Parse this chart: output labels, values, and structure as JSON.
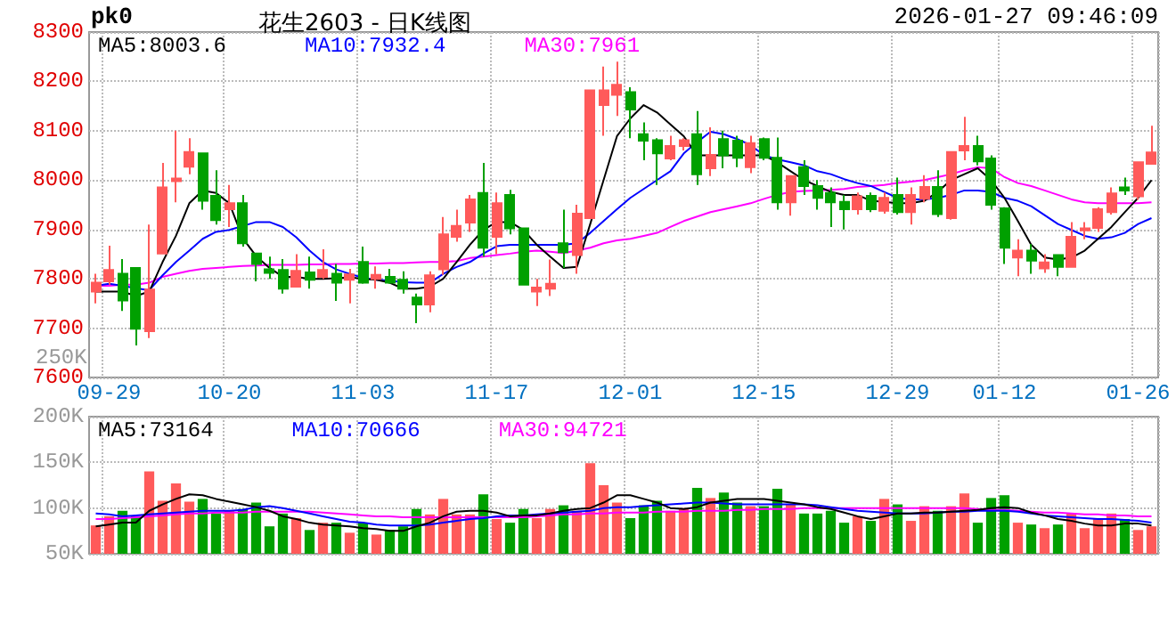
{
  "chart_data": [
    {
      "type": "candlestick",
      "title": "花生2603 - 日K线图",
      "annotations": [
        "pk0",
        "2026-01-27 09:46:09"
      ],
      "categories": [
        null,
        "09-29",
        null,
        null,
        null,
        null,
        null,
        null,
        null,
        null,
        "10-20",
        null,
        null,
        null,
        null,
        null,
        null,
        null,
        null,
        null,
        "11-03",
        null,
        null,
        null,
        null,
        null,
        null,
        null,
        null,
        null,
        "11-17",
        null,
        null,
        null,
        null,
        null,
        null,
        null,
        null,
        null,
        "12-01",
        null,
        null,
        null,
        null,
        null,
        null,
        null,
        null,
        null,
        "12-15",
        null,
        null,
        null,
        null,
        null,
        null,
        null,
        null,
        null,
        "12-29",
        null,
        null,
        null,
        null,
        null,
        null,
        null,
        "01-12",
        null,
        null,
        null,
        null,
        null,
        null,
        null,
        null,
        null,
        "01-26",
        null
      ],
      "ohlc": [
        [
          7774,
          7810,
          7750,
          7792
        ],
        [
          7795,
          7867,
          7788,
          7818
        ],
        [
          7810,
          7840,
          7735,
          7756
        ],
        [
          7822,
          7822,
          7665,
          7699
        ],
        [
          7694,
          7910,
          7680,
          7778
        ],
        [
          7851,
          8035,
          7851,
          7985
        ],
        [
          7998,
          8100,
          7955,
          8003
        ],
        [
          8027,
          8085,
          8012,
          8057
        ],
        [
          8054,
          8054,
          7940,
          7958
        ],
        [
          7968,
          8020,
          7910,
          7919
        ],
        [
          7941,
          7990,
          7905,
          7953
        ],
        [
          7953,
          7970,
          7865,
          7872
        ],
        [
          7851,
          7851,
          7795,
          7830
        ],
        [
          7819,
          7845,
          7800,
          7812
        ],
        [
          7818,
          7840,
          7770,
          7780
        ],
        [
          7784,
          7850,
          7784,
          7816
        ],
        [
          7813,
          7845,
          7780,
          7798
        ],
        [
          7804,
          7860,
          7800,
          7818
        ],
        [
          7810,
          7830,
          7755,
          7792
        ],
        [
          7798,
          7820,
          7750,
          7809
        ],
        [
          7834,
          7865,
          7790,
          7792
        ],
        [
          7800,
          7825,
          7780,
          7808
        ],
        [
          7804,
          7820,
          7790,
          7792
        ],
        [
          7798,
          7815,
          7770,
          7780
        ],
        [
          7762,
          7770,
          7710,
          7748
        ],
        [
          7748,
          7815,
          7732,
          7807
        ],
        [
          7819,
          7925,
          7808,
          7890
        ],
        [
          7885,
          7940,
          7875,
          7907
        ],
        [
          7914,
          7970,
          7895,
          7961
        ],
        [
          7974,
          8035,
          7845,
          7863
        ],
        [
          7885,
          7975,
          7850,
          7953
        ],
        [
          7970,
          7980,
          7890,
          7902
        ],
        [
          7902,
          7902,
          7788,
          7788
        ],
        [
          7774,
          7800,
          7745,
          7782
        ],
        [
          7780,
          7839,
          7765,
          7790
        ],
        [
          7872,
          7940,
          7822,
          7854
        ],
        [
          7848,
          7950,
          7810,
          7932
        ],
        [
          7923,
          8182,
          7923,
          8182
        ],
        [
          8152,
          8230,
          8090,
          8182
        ],
        [
          8173,
          8240,
          8130,
          8193
        ],
        [
          8178,
          8188,
          8085,
          8143
        ],
        [
          8093,
          8117,
          8040,
          8080
        ],
        [
          8081,
          8085,
          7990,
          8054
        ],
        [
          8044,
          8090,
          8040,
          8069
        ],
        [
          8069,
          8085,
          8060,
          8081
        ],
        [
          8093,
          8140,
          7990,
          8012
        ],
        [
          8024,
          8107,
          8008,
          8051
        ],
        [
          8083,
          8100,
          8024,
          8050
        ],
        [
          8080,
          8090,
          8026,
          8045
        ],
        [
          8026,
          8090,
          8014,
          8075
        ],
        [
          8083,
          8086,
          8040,
          8045
        ],
        [
          8045,
          8086,
          7940,
          7955
        ],
        [
          7955,
          8010,
          7928,
          8008
        ],
        [
          8026,
          8040,
          7970,
          7988
        ],
        [
          7988,
          8000,
          7940,
          7964
        ],
        [
          7974,
          7985,
          7905,
          7955
        ],
        [
          7956,
          7970,
          7900,
          7941
        ],
        [
          7941,
          7975,
          7930,
          7967
        ],
        [
          7968,
          7975,
          7935,
          7941
        ],
        [
          7938,
          7975,
          7932,
          7964
        ],
        [
          7970,
          8005,
          7930,
          7935
        ],
        [
          7935,
          7985,
          7910,
          7970
        ],
        [
          7962,
          8010,
          7955,
          7986
        ],
        [
          7986,
          8020,
          7925,
          7931
        ],
        [
          7923,
          8057,
          7920,
          8057
        ],
        [
          8060,
          8128,
          8040,
          8069
        ],
        [
          8069,
          8090,
          8030,
          8038
        ],
        [
          8044,
          8050,
          7940,
          7950
        ],
        [
          7943,
          7945,
          7830,
          7863
        ],
        [
          7843,
          7880,
          7805,
          7857
        ],
        [
          7857,
          7870,
          7810,
          7837
        ],
        [
          7821,
          7850,
          7812,
          7833
        ],
        [
          7848,
          7850,
          7805,
          7824
        ],
        [
          7824,
          7915,
          7824,
          7885
        ],
        [
          7898,
          7915,
          7880,
          7902
        ],
        [
          7903,
          7945,
          7895,
          7941
        ],
        [
          7935,
          7985,
          7930,
          7973
        ],
        [
          7985,
          8005,
          7970,
          7979
        ],
        [
          7967,
          8036,
          7960,
          8036
        ],
        [
          8033,
          8110,
          8033,
          8056
        ]
      ],
      "colors": [
        "#ff5a5a",
        "#ff5a5a",
        "#00a000",
        "#00a000",
        "#ff5a5a",
        "#ff5a5a",
        "#ff5a5a",
        "#ff5a5a",
        "#00a000",
        "#00a000",
        "#ff5a5a",
        "#00a000",
        "#00a000",
        "#00a000",
        "#00a000",
        "#ff5a5a",
        "#00a000",
        "#ff5a5a",
        "#00a000",
        "#ff5a5a",
        "#00a000",
        "#ff5a5a",
        "#00a000",
        "#00a000",
        "#00a000",
        "#ff5a5a",
        "#ff5a5a",
        "#ff5a5a",
        "#ff5a5a",
        "#00a000",
        "#ff5a5a",
        "#00a000",
        "#00a000",
        "#ff5a5a",
        "#ff5a5a",
        "#00a000",
        "#ff5a5a",
        "#ff5a5a",
        "#ff5a5a",
        "#ff5a5a",
        "#00a000",
        "#00a000",
        "#00a000",
        "#ff5a5a",
        "#ff5a5a",
        "#00a000",
        "#ff5a5a",
        "#00a000",
        "#00a000",
        "#ff5a5a",
        "#00a000",
        "#00a000",
        "#ff5a5a",
        "#00a000",
        "#00a000",
        "#00a000",
        "#00a000",
        "#ff5a5a",
        "#00a000",
        "#ff5a5a",
        "#00a000",
        "#ff5a5a",
        "#ff5a5a",
        "#00a000",
        "#ff5a5a",
        "#ff5a5a",
        "#00a000",
        "#00a000",
        "#00a000",
        "#ff5a5a",
        "#00a000",
        "#ff5a5a",
        "#00a000",
        "#ff5a5a",
        "#ff5a5a",
        "#ff5a5a",
        "#ff5a5a",
        "#00a000",
        "#ff5a5a",
        "#ff5a5a"
      ],
      "series": [
        {
          "name": "MA5:8003.6",
          "type": "line",
          "color": "#000000",
          "values": [
            7774,
            7774,
            7774,
            7765,
            7774,
            7834,
            7887,
            7953,
            7979,
            7974,
            7953,
            7882,
            7846,
            7822,
            7804,
            7804,
            7800,
            7800,
            7801,
            7803,
            7800,
            7798,
            7792,
            7780,
            7780,
            7784,
            7800,
            7834,
            7869,
            7899,
            7915,
            7915,
            7899,
            7869,
            7845,
            7822,
            7824,
            7911,
            8000,
            8089,
            8125,
            8152,
            8137,
            8113,
            8089,
            8050,
            8050,
            8050,
            8050,
            8050,
            8050,
            8036,
            8018,
            8000,
            7988,
            7976,
            7970,
            7970,
            7958,
            7956,
            7953,
            7953,
            7958,
            7976,
            8000,
            8012,
            8024,
            8000,
            7964,
            7917,
            7869,
            7843,
            7839,
            7843,
            7857,
            7881,
            7905,
            7935,
            7964,
            8000
          ]
        },
        {
          "name": "MA10:7932.4",
          "type": "line",
          "color": "#0000ff",
          "values": [
            7786,
            7790,
            7786,
            7781,
            7777,
            7807,
            7834,
            7857,
            7881,
            7895,
            7899,
            7907,
            7915,
            7915,
            7905,
            7884,
            7857,
            7834,
            7819,
            7810,
            7802,
            7798,
            7796,
            7793,
            7792,
            7792,
            7810,
            7824,
            7834,
            7851,
            7866,
            7869,
            7869,
            7869,
            7869,
            7869,
            7872,
            7893,
            7917,
            7941,
            7964,
            7982,
            8000,
            8018,
            8054,
            8077,
            8098,
            8093,
            8083,
            8071,
            8050,
            8042,
            8036,
            8030,
            8018,
            8012,
            8002,
            7994,
            7988,
            7976,
            7964,
            7961,
            7961,
            7964,
            7970,
            7979,
            7979,
            7976,
            7964,
            7958,
            7947,
            7929,
            7911,
            7899,
            7887,
            7881,
            7884,
            7893,
            7911,
            7923
          ]
        },
        {
          "name": "MA30:7961",
          "type": "line",
          "color": "#ff00ff",
          "values": [
            7786,
            7786,
            7788,
            7788,
            7792,
            7804,
            7810,
            7816,
            7820,
            7822,
            7824,
            7826,
            7827,
            7828,
            7828,
            7828,
            7829,
            7829,
            7830,
            7830,
            7831,
            7831,
            7832,
            7832,
            7833,
            7834,
            7834,
            7836,
            7842,
            7845,
            7848,
            7851,
            7855,
            7857,
            7855,
            7852,
            7857,
            7863,
            7872,
            7878,
            7881,
            7887,
            7893,
            7905,
            7917,
            7926,
            7935,
            7941,
            7947,
            7953,
            7962,
            7970,
            7976,
            7978,
            7979,
            7980,
            7982,
            7986,
            7988,
            7990,
            7994,
            7997,
            8000,
            8006,
            8012,
            8020,
            8026,
            8024,
            8006,
            7994,
            7988,
            7979,
            7970,
            7961,
            7955,
            7953,
            7953,
            7953,
            7953,
            7955
          ]
        }
      ],
      "ylim": [
        7600,
        8300
      ],
      "yticks": [
        7600,
        7700,
        7800,
        7900,
        8000,
        8100,
        8200,
        8300
      ],
      "grid": true,
      "legend": "top left",
      "marker": "none",
      "line_style": "solid"
    },
    {
      "type": "bar",
      "annotations": [
        "250K"
      ],
      "categories": [
        null,
        null,
        null,
        null,
        null,
        null,
        null,
        null,
        null,
        null,
        null,
        null,
        null,
        null,
        null,
        null,
        null,
        null,
        null,
        null,
        null,
        null,
        null,
        null,
        null,
        null,
        null,
        null,
        null,
        null,
        null,
        null,
        null,
        null,
        null,
        null,
        null,
        null,
        null,
        null,
        null,
        null,
        null,
        null,
        null,
        null,
        null,
        null,
        null,
        null,
        null,
        null,
        null,
        null,
        null,
        null,
        null,
        null,
        null,
        null,
        null,
        null,
        null,
        null,
        null,
        null,
        null,
        null,
        null,
        null,
        null,
        null,
        null,
        null,
        null,
        null,
        null,
        null,
        null,
        null
      ],
      "values": [
        81000,
        91000,
        97000,
        91000,
        140000,
        108000,
        127000,
        107000,
        110000,
        94000,
        97000,
        99000,
        106000,
        80000,
        94000,
        89000,
        76000,
        84000,
        84000,
        73000,
        84000,
        71000,
        76000,
        80000,
        99000,
        93000,
        110000,
        93000,
        93000,
        115000,
        88000,
        84000,
        99000,
        89000,
        99000,
        103000,
        97000,
        149000,
        125000,
        106000,
        89000,
        103000,
        108000,
        97000,
        100000,
        122000,
        111000,
        117000,
        106000,
        102000,
        102000,
        121000,
        104000,
        94000,
        94000,
        97000,
        84000,
        91000,
        86000,
        110000,
        104000,
        86000,
        102000,
        97000,
        102000,
        116000,
        84000,
        111000,
        114000,
        84000,
        82000,
        78000,
        82000,
        94000,
        78000,
        88000,
        94000,
        88000,
        76000,
        80000
      ],
      "colors": [
        "#ff5a5a",
        "#ff5a5a",
        "#00a000",
        "#00a000",
        "#ff5a5a",
        "#ff5a5a",
        "#ff5a5a",
        "#ff5a5a",
        "#00a000",
        "#00a000",
        "#ff5a5a",
        "#00a000",
        "#00a000",
        "#00a000",
        "#00a000",
        "#ff5a5a",
        "#00a000",
        "#ff5a5a",
        "#00a000",
        "#ff5a5a",
        "#00a000",
        "#ff5a5a",
        "#00a000",
        "#00a000",
        "#00a000",
        "#ff5a5a",
        "#ff5a5a",
        "#ff5a5a",
        "#ff5a5a",
        "#00a000",
        "#ff5a5a",
        "#00a000",
        "#00a000",
        "#ff5a5a",
        "#ff5a5a",
        "#00a000",
        "#ff5a5a",
        "#ff5a5a",
        "#ff5a5a",
        "#ff5a5a",
        "#00a000",
        "#00a000",
        "#00a000",
        "#ff5a5a",
        "#ff5a5a",
        "#00a000",
        "#ff5a5a",
        "#00a000",
        "#00a000",
        "#ff5a5a",
        "#00a000",
        "#00a000",
        "#ff5a5a",
        "#00a000",
        "#00a000",
        "#00a000",
        "#00a000",
        "#ff5a5a",
        "#00a000",
        "#ff5a5a",
        "#00a000",
        "#ff5a5a",
        "#ff5a5a",
        "#00a000",
        "#ff5a5a",
        "#ff5a5a",
        "#00a000",
        "#00a000",
        "#00a000",
        "#ff5a5a",
        "#00a000",
        "#ff5a5a",
        "#00a000",
        "#ff5a5a",
        "#ff5a5a",
        "#ff5a5a",
        "#ff5a5a",
        "#00a000",
        "#ff5a5a",
        "#ff5a5a"
      ],
      "series": [
        {
          "name": "MA5:73164",
          "type": "line",
          "color": "#000000",
          "values": [
            80000,
            82000,
            84000,
            84000,
            97000,
            104000,
            110000,
            115000,
            114000,
            110000,
            107000,
            104000,
            101000,
            97000,
            91000,
            88000,
            84000,
            82000,
            81000,
            80000,
            78000,
            77000,
            75000,
            75000,
            80000,
            84000,
            91000,
            96000,
            97000,
            97000,
            95000,
            91000,
            92000,
            92000,
            94000,
            97000,
            99000,
            100000,
            106000,
            114000,
            114000,
            110000,
            106000,
            100000,
            99000,
            101000,
            106000,
            108000,
            110000,
            110000,
            110000,
            108000,
            106000,
            104000,
            101000,
            99000,
            95000,
            91000,
            88000,
            91000,
            94000,
            94000,
            95000,
            95000,
            96000,
            97000,
            98000,
            100000,
            101000,
            100000,
            95000,
            92000,
            88000,
            86000,
            83000,
            81000,
            81000,
            83000,
            83000,
            81000
          ]
        },
        {
          "name": "MA10:70666",
          "type": "line",
          "color": "#0000ff",
          "values": [
            94000,
            93000,
            91000,
            92000,
            93000,
            94000,
            95000,
            96000,
            97000,
            97000,
            97000,
            98000,
            101000,
            102000,
            100000,
            97000,
            94000,
            91000,
            88000,
            85000,
            84000,
            82000,
            81000,
            81000,
            81000,
            82000,
            84000,
            86000,
            88000,
            89000,
            91000,
            92000,
            92000,
            93000,
            94000,
            95000,
            96000,
            97000,
            100000,
            101000,
            101000,
            102000,
            103000,
            104000,
            105000,
            106000,
            106000,
            105000,
            104000,
            104000,
            104000,
            104000,
            104000,
            104000,
            103000,
            101000,
            99000,
            97000,
            96000,
            95000,
            94000,
            94000,
            94000,
            95000,
            96000,
            96000,
            97000,
            97000,
            97000,
            96000,
            94000,
            92000,
            91000,
            90000,
            89000,
            88000,
            88000,
            87000,
            86000,
            84000
          ]
        },
        {
          "name": "MA30:94721",
          "type": "line",
          "color": "#ff00ff",
          "values": [
            88000,
            88000,
            89000,
            90000,
            91000,
            92000,
            93000,
            94000,
            94000,
            95000,
            95000,
            95000,
            96000,
            96000,
            96000,
            96000,
            96000,
            95000,
            94000,
            93000,
            92000,
            91000,
            91000,
            90000,
            90000,
            90000,
            90000,
            90000,
            90000,
            90000,
            90000,
            90000,
            90000,
            91000,
            92000,
            93000,
            93000,
            94000,
            94000,
            95000,
            95000,
            95000,
            96000,
            96000,
            96000,
            97000,
            97000,
            97000,
            98000,
            98000,
            99000,
            99000,
            99000,
            100000,
            100000,
            100000,
            100000,
            100000,
            100000,
            100000,
            100000,
            100000,
            100000,
            100000,
            100000,
            100000,
            99000,
            98000,
            98000,
            97000,
            96000,
            95000,
            95000,
            94000,
            93000,
            93000,
            92000,
            92000,
            91000,
            91000
          ]
        }
      ],
      "ylim": [
        50000,
        200000
      ],
      "yticks": [
        {
          "value": 50000,
          "label": "50K"
        },
        {
          "value": 100000,
          "label": "100K"
        },
        {
          "value": 150000,
          "label": "150K"
        },
        {
          "value": 200000,
          "label": "200K"
        }
      ],
      "grid": true,
      "legend": "top left",
      "marker": "none",
      "line_style": "solid",
      "tick_labels": "y"
    }
  ]
}
